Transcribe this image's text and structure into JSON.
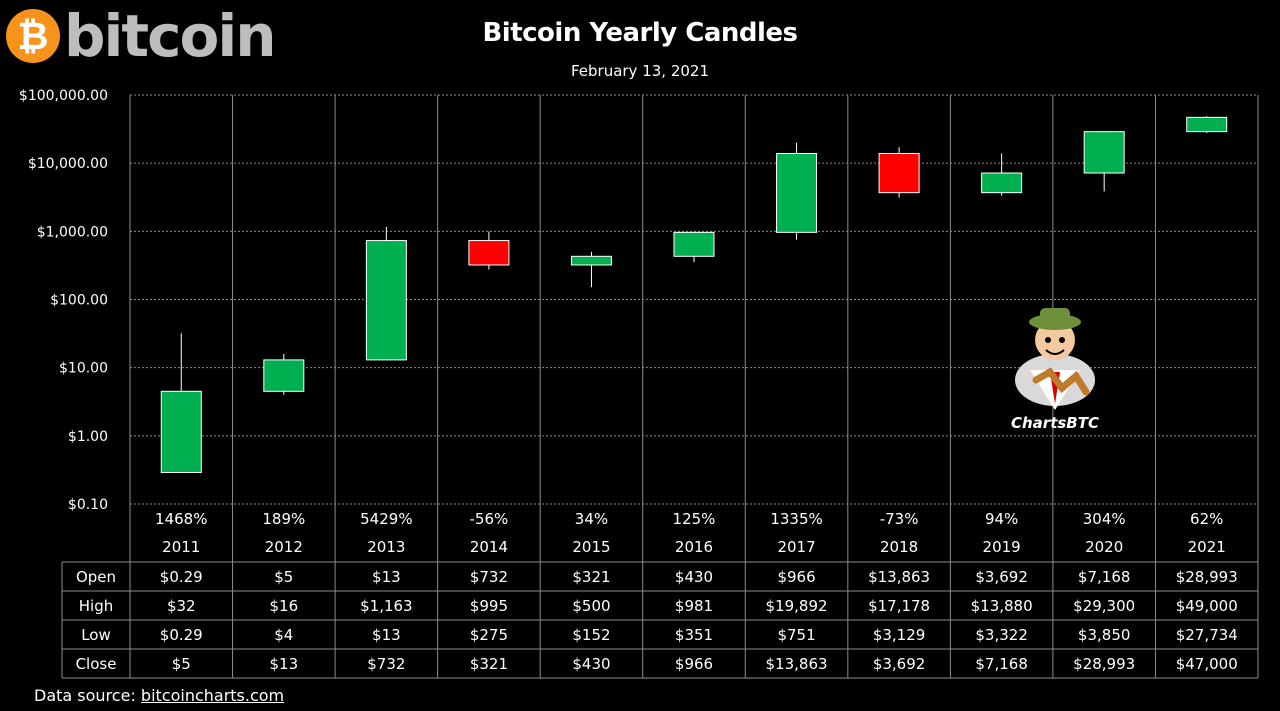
{
  "header": {
    "logo_symbol": "₿",
    "logo_text": "bitcoin",
    "title": "Bitcoin Yearly Candles",
    "subtitle": "February 13, 2021"
  },
  "footer": {
    "source_prefix": "Data source: ",
    "source_link": "bitcoincharts.com"
  },
  "watermark": {
    "label": "ChartsBTC"
  },
  "colors": {
    "up": "#00b050",
    "down": "#ff0000",
    "grid": "#8c8c8c",
    "background": "#000000"
  },
  "chart_data": {
    "type": "candlestick",
    "y_scale": "log",
    "ylim": [
      0.1,
      100000
    ],
    "y_ticks": [
      {
        "value": 100000,
        "label": "$100,000.00"
      },
      {
        "value": 10000,
        "label": "$10,000.00"
      },
      {
        "value": 1000,
        "label": "$1,000.00"
      },
      {
        "value": 100,
        "label": "$100.00"
      },
      {
        "value": 10,
        "label": "$10.00"
      },
      {
        "value": 1,
        "label": "$1.00"
      },
      {
        "value": 0.1,
        "label": "$0.10"
      }
    ],
    "grid": true,
    "categories": [
      "2011",
      "2012",
      "2013",
      "2014",
      "2015",
      "2016",
      "2017",
      "2018",
      "2019",
      "2020",
      "2021"
    ],
    "change_labels": [
      "1468%",
      "189%",
      "5429%",
      "-56%",
      "34%",
      "125%",
      "1335%",
      "-73%",
      "94%",
      "304%",
      "62%"
    ],
    "candles": [
      {
        "open": 0.29,
        "high": 32,
        "low": 0.29,
        "close": 4.5
      },
      {
        "open": 4.5,
        "high": 16,
        "low": 4,
        "close": 13
      },
      {
        "open": 13,
        "high": 1163,
        "low": 13,
        "close": 732
      },
      {
        "open": 732,
        "high": 995,
        "low": 275,
        "close": 321
      },
      {
        "open": 321,
        "high": 500,
        "low": 152,
        "close": 430
      },
      {
        "open": 430,
        "high": 981,
        "low": 351,
        "close": 966
      },
      {
        "open": 966,
        "high": 19892,
        "low": 751,
        "close": 13863
      },
      {
        "open": 13863,
        "high": 17178,
        "low": 3129,
        "close": 3692
      },
      {
        "open": 3692,
        "high": 13880,
        "low": 3322,
        "close": 7168
      },
      {
        "open": 7168,
        "high": 29300,
        "low": 3850,
        "close": 28993
      },
      {
        "open": 28993,
        "high": 49000,
        "low": 27734,
        "close": 47000
      }
    ],
    "table": {
      "rows": [
        {
          "label": "Open",
          "values": [
            "$0.29",
            "$5",
            "$13",
            "$732",
            "$321",
            "$430",
            "$966",
            "$13,863",
            "$3,692",
            "$7,168",
            "$28,993"
          ]
        },
        {
          "label": "High",
          "values": [
            "$32",
            "$16",
            "$1,163",
            "$995",
            "$500",
            "$981",
            "$19,892",
            "$17,178",
            "$13,880",
            "$29,300",
            "$49,000"
          ]
        },
        {
          "label": "Low",
          "values": [
            "$0.29",
            "$4",
            "$13",
            "$275",
            "$152",
            "$351",
            "$751",
            "$3,129",
            "$3,322",
            "$3,850",
            "$27,734"
          ]
        },
        {
          "label": "Close",
          "values": [
            "$5",
            "$13",
            "$732",
            "$321",
            "$430",
            "$966",
            "$13,863",
            "$3,692",
            "$7,168",
            "$28,993",
            "$47,000"
          ]
        }
      ]
    }
  }
}
